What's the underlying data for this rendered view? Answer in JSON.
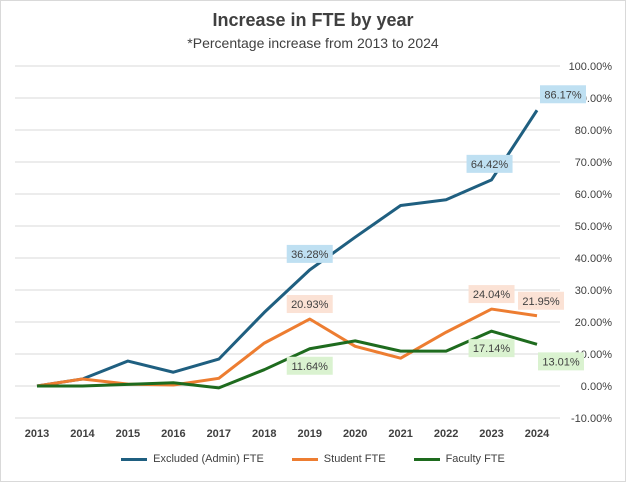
{
  "chart_data": {
    "type": "line",
    "title": "Increase in FTE by year",
    "subtitle": "*Percentage increase from 2013 to 2024",
    "xlabel": "",
    "ylabel": "",
    "categories": [
      "2013",
      "2014",
      "2015",
      "2016",
      "2017",
      "2018",
      "2019",
      "2020",
      "2021",
      "2022",
      "2023",
      "2024"
    ],
    "ylim": [
      -10,
      100
    ],
    "ytick_step": 10,
    "ytick_labels": [
      "-10.00%",
      "0.00%",
      "10.00%",
      "20.00%",
      "30.00%",
      "40.00%",
      "50.00%",
      "60.00%",
      "70.00%",
      "80.00%",
      "90.00%",
      "100.00%"
    ],
    "grid": true,
    "legend_position": "bottom",
    "series": [
      {
        "name": "Excluded (Admin) FTE",
        "color": "#1f5f80",
        "label_fill": "#bfe0f2",
        "values": [
          0,
          2.2,
          7.8,
          4.3,
          8.4,
          23.0,
          36.28,
          46.5,
          56.4,
          58.2,
          64.42,
          86.17
        ],
        "data_labels": [
          {
            "index": 6,
            "text": "36.28%"
          },
          {
            "index": 10,
            "text": "64.42%"
          },
          {
            "index": 11,
            "text": "86.17%"
          }
        ]
      },
      {
        "name": "Student FTE",
        "color": "#ed7d31",
        "label_fill": "#fbe2d5",
        "values": [
          0,
          2.2,
          0.6,
          0.3,
          2.4,
          13.4,
          20.93,
          12.4,
          8.7,
          16.8,
          24.04,
          21.95
        ],
        "data_labels": [
          {
            "index": 6,
            "text": "20.93%"
          },
          {
            "index": 10,
            "text": "24.04%"
          },
          {
            "index": 11,
            "text": "21.95%"
          }
        ]
      },
      {
        "name": "Faculty FTE",
        "color": "#1e6b1e",
        "label_fill": "#daf2d0",
        "values": [
          0,
          0,
          0.5,
          1.0,
          -0.6,
          5.1,
          11.64,
          14.1,
          10.9,
          10.9,
          17.14,
          13.01
        ],
        "data_labels": [
          {
            "index": 6,
            "text": "11.64%"
          },
          {
            "index": 10,
            "text": "17.14%"
          },
          {
            "index": 11,
            "text": "13.01%"
          }
        ]
      }
    ]
  }
}
